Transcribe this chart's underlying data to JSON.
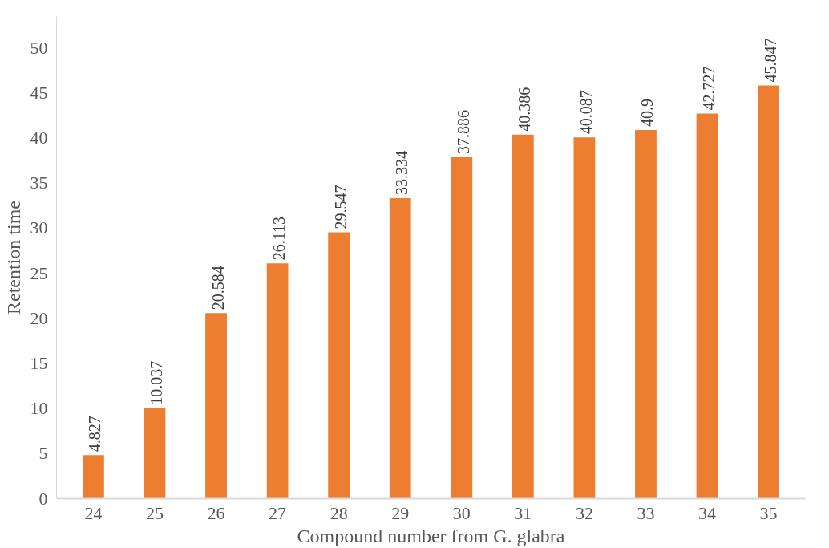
{
  "chart_data": {
    "type": "bar",
    "xlabel": "Compound number from G. glabra",
    "ylabel": "Retention time",
    "categories": [
      "24",
      "25",
      "26",
      "27",
      "28",
      "29",
      "30",
      "31",
      "32",
      "33",
      "34",
      "35"
    ],
    "values": [
      4.827,
      10.037,
      20.584,
      26.113,
      29.547,
      33.334,
      37.886,
      40.386,
      40.087,
      40.9,
      42.727,
      45.847
    ],
    "color": "#ed7d31",
    "ylim": [
      0,
      53.5
    ],
    "yticks": [
      0,
      5,
      10,
      15,
      20,
      25,
      30,
      35,
      40,
      45,
      50
    ],
    "grid": false,
    "data_labels": true
  }
}
